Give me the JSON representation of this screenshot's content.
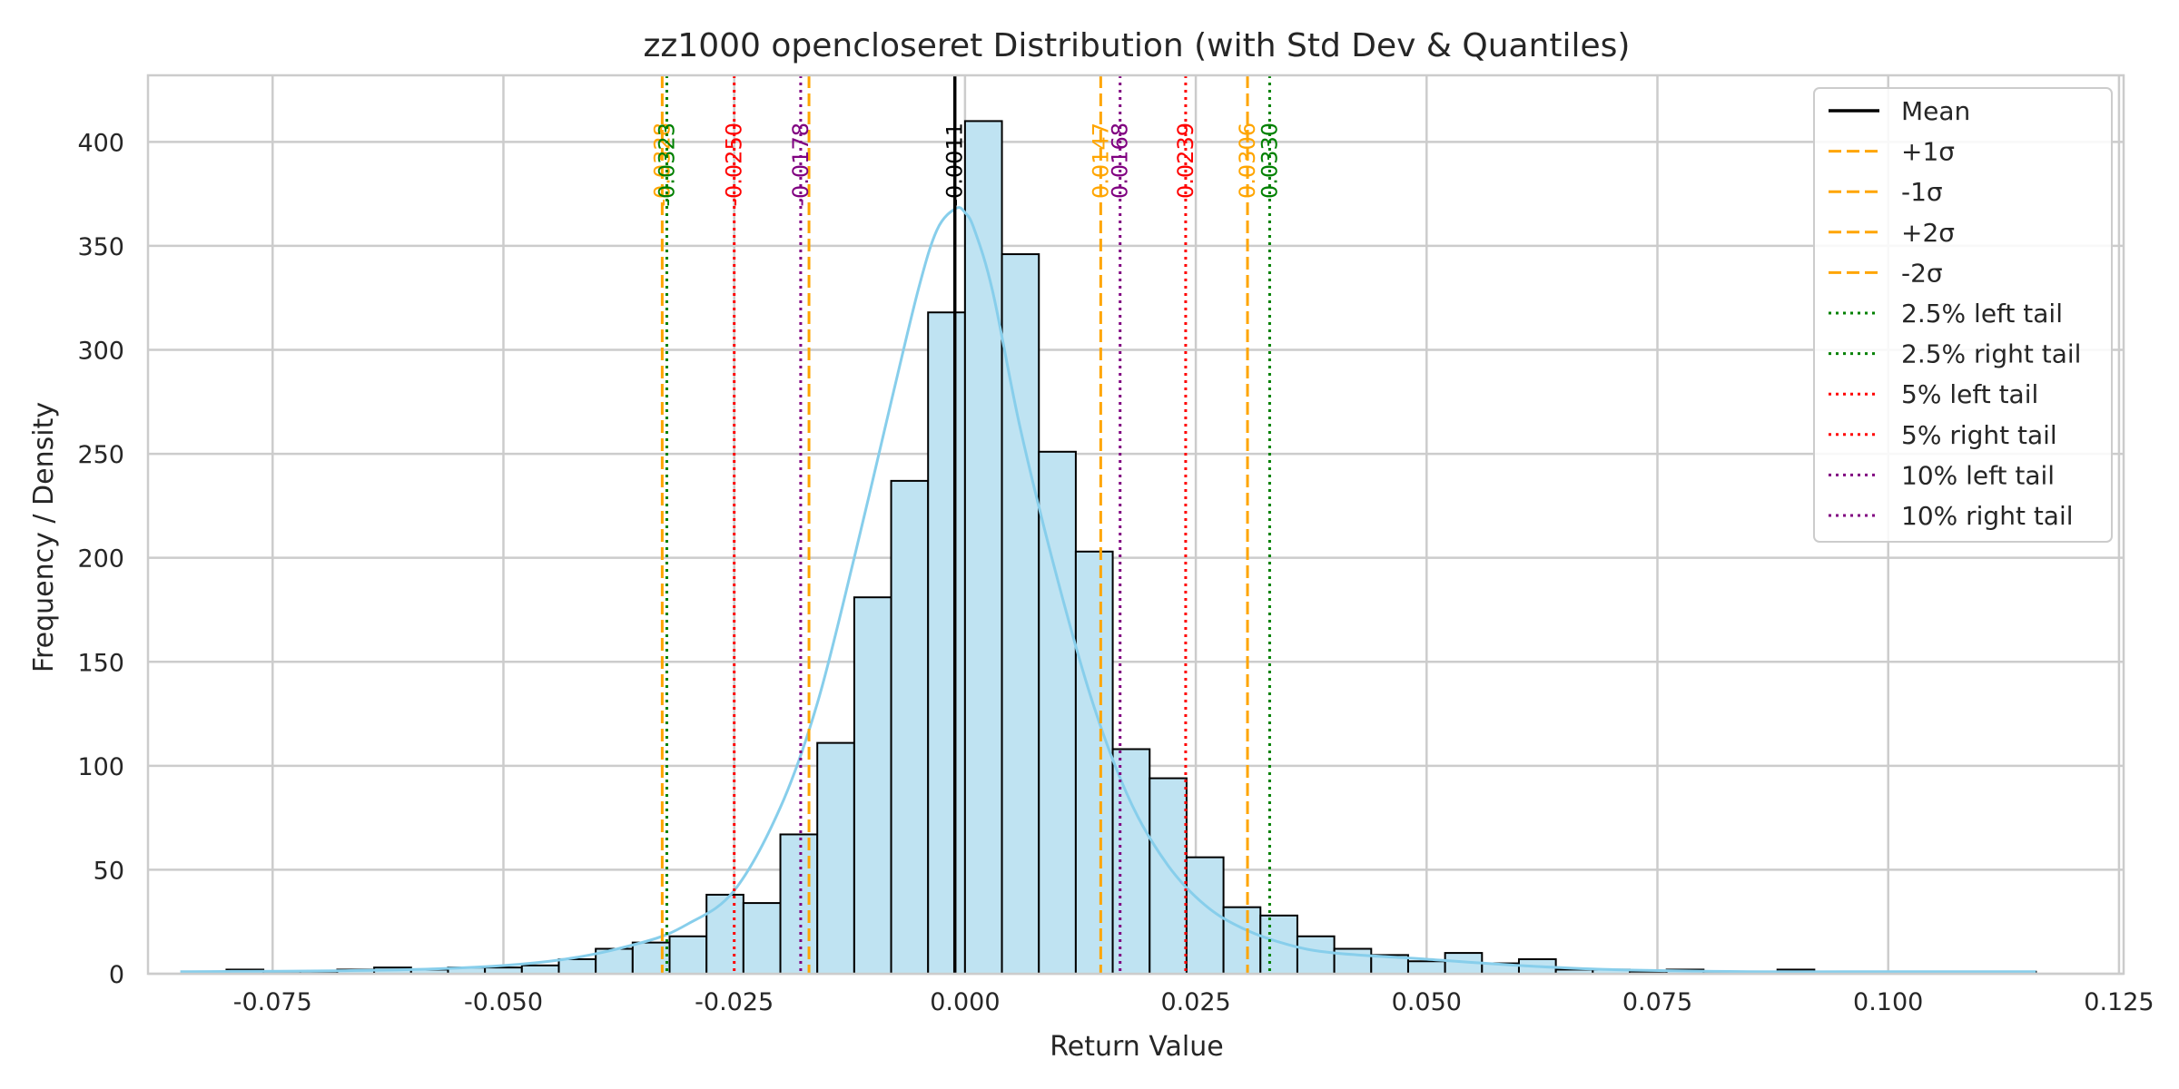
{
  "chart_data": {
    "type": "histogram",
    "title": "zz1000 opencloseret Distribution (with Std Dev & Quantiles)",
    "xlabel": "Return Value",
    "ylabel": "Frequency / Density",
    "xlim": [
      -0.0885,
      0.1255
    ],
    "ylim": [
      0,
      432
    ],
    "x_ticks": [
      -0.075,
      -0.05,
      -0.025,
      0.0,
      0.025,
      0.05,
      0.075,
      0.1,
      0.125
    ],
    "x_tick_labels": [
      "-0.075",
      "-0.050",
      "-0.025",
      "0.000",
      "0.025",
      "0.050",
      "0.075",
      "0.100",
      "0.125"
    ],
    "y_ticks": [
      0,
      50,
      100,
      150,
      200,
      250,
      300,
      350,
      400
    ],
    "y_tick_labels": [
      "0",
      "50",
      "100",
      "150",
      "200",
      "250",
      "300",
      "350",
      "400"
    ],
    "bin_width": 0.004,
    "bins": [
      {
        "left": -0.084,
        "count": 1
      },
      {
        "left": -0.08,
        "count": 2
      },
      {
        "left": -0.076,
        "count": 1
      },
      {
        "left": -0.072,
        "count": 1
      },
      {
        "left": -0.068,
        "count": 2
      },
      {
        "left": -0.064,
        "count": 3
      },
      {
        "left": -0.06,
        "count": 2
      },
      {
        "left": -0.056,
        "count": 3
      },
      {
        "left": -0.052,
        "count": 3
      },
      {
        "left": -0.048,
        "count": 4
      },
      {
        "left": -0.044,
        "count": 7
      },
      {
        "left": -0.04,
        "count": 12
      },
      {
        "left": -0.036,
        "count": 15
      },
      {
        "left": -0.032,
        "count": 18
      },
      {
        "left": -0.028,
        "count": 38
      },
      {
        "left": -0.024,
        "count": 34
      },
      {
        "left": -0.02,
        "count": 67
      },
      {
        "left": -0.016,
        "count": 111
      },
      {
        "left": -0.012,
        "count": 181
      },
      {
        "left": -0.008,
        "count": 237
      },
      {
        "left": -0.004,
        "count": 318
      },
      {
        "left": 0.0,
        "count": 410
      },
      {
        "left": 0.004,
        "count": 346
      },
      {
        "left": 0.008,
        "count": 251
      },
      {
        "left": 0.012,
        "count": 203
      },
      {
        "left": 0.016,
        "count": 108
      },
      {
        "left": 0.02,
        "count": 94
      },
      {
        "left": 0.024,
        "count": 56
      },
      {
        "left": 0.028,
        "count": 32
      },
      {
        "left": 0.032,
        "count": 28
      },
      {
        "left": 0.036,
        "count": 18
      },
      {
        "left": 0.04,
        "count": 12
      },
      {
        "left": 0.044,
        "count": 9
      },
      {
        "left": 0.048,
        "count": 6
      },
      {
        "left": 0.052,
        "count": 10
      },
      {
        "left": 0.056,
        "count": 5
      },
      {
        "left": 0.06,
        "count": 7
      },
      {
        "left": 0.064,
        "count": 2
      },
      {
        "left": 0.068,
        "count": 2
      },
      {
        "left": 0.072,
        "count": 1
      },
      {
        "left": 0.076,
        "count": 2
      },
      {
        "left": 0.08,
        "count": 1
      },
      {
        "left": 0.084,
        "count": 1
      },
      {
        "left": 0.088,
        "count": 2
      },
      {
        "left": 0.092,
        "count": 1
      },
      {
        "left": 0.096,
        "count": 1
      },
      {
        "left": 0.1,
        "count": 1
      },
      {
        "left": 0.104,
        "count": 1
      },
      {
        "left": 0.108,
        "count": 1
      },
      {
        "left": 0.112,
        "count": 1
      }
    ],
    "kde": {
      "x": [
        -0.085,
        -0.06,
        -0.045,
        -0.035,
        -0.03,
        -0.025,
        -0.02,
        -0.016,
        -0.012,
        -0.008,
        -0.005,
        -0.003,
        -0.001,
        0.0,
        0.001,
        0.003,
        0.006,
        0.01,
        0.014,
        0.018,
        0.022,
        0.026,
        0.03,
        0.035,
        0.04,
        0.05,
        0.06,
        0.07,
        0.085,
        0.1,
        0.116
      ],
      "y": [
        1,
        2,
        6,
        15,
        24,
        40,
        80,
        130,
        200,
        275,
        330,
        358,
        368,
        366,
        358,
        328,
        262,
        190,
        128,
        82,
        52,
        33,
        22,
        14,
        10,
        7,
        4,
        2,
        1,
        1,
        1
      ]
    },
    "bar_color": "#bfe3f2",
    "bar_edge_color": "#000000",
    "kde_color": "#87ceeb",
    "vertical_lines": [
      {
        "name": "mean",
        "x": -0.0011,
        "label": "-0.0011",
        "color": "#000000",
        "style": "solid"
      },
      {
        "name": "plus-1-sigma",
        "x": 0.0147,
        "label": "0.0147",
        "color": "#ffa500",
        "style": "dashed"
      },
      {
        "name": "minus-1-sigma",
        "x": -0.0169,
        "label": "",
        "color": "#ffa500",
        "style": "dashed"
      },
      {
        "name": "plus-2-sigma",
        "x": 0.0306,
        "label": "0.0306",
        "color": "#ffa500",
        "style": "dashed"
      },
      {
        "name": "minus-2-sigma",
        "x": -0.0328,
        "label": "-0.0328",
        "color": "#ffa500",
        "style": "dashed"
      },
      {
        "name": "left-2-5-tail",
        "x": -0.0323,
        "label": "-0.0323",
        "color": "#008000",
        "style": "dotted"
      },
      {
        "name": "right-2-5-tail",
        "x": 0.033,
        "label": "0.0330",
        "color": "#008000",
        "style": "dotted"
      },
      {
        "name": "left-5-tail",
        "x": -0.025,
        "label": "-0.0250",
        "color": "#ff0000",
        "style": "dotted"
      },
      {
        "name": "right-5-tail",
        "x": 0.0239,
        "label": "0.0239",
        "color": "#ff0000",
        "style": "dotted"
      },
      {
        "name": "left-10-tail",
        "x": -0.0178,
        "label": "-0.0178",
        "color": "#800080",
        "style": "dotted"
      },
      {
        "name": "right-10-tail",
        "x": 0.0168,
        "label": "0.0168",
        "color": "#800080",
        "style": "dotted"
      }
    ],
    "legend": {
      "position": "top-right",
      "entries": [
        {
          "label": "Mean",
          "color": "#000000",
          "style": "solid"
        },
        {
          "label": "+1σ",
          "color": "#ffa500",
          "style": "dashed"
        },
        {
          "label": "-1σ",
          "color": "#ffa500",
          "style": "dashed"
        },
        {
          "label": "+2σ",
          "color": "#ffa500",
          "style": "dashed"
        },
        {
          "label": "-2σ",
          "color": "#ffa500",
          "style": "dashed"
        },
        {
          "label": "2.5% left tail",
          "color": "#008000",
          "style": "dotted"
        },
        {
          "label": "2.5% right tail",
          "color": "#008000",
          "style": "dotted"
        },
        {
          "label": "5% left tail",
          "color": "#ff0000",
          "style": "dotted"
        },
        {
          "label": "5% right tail",
          "color": "#ff0000",
          "style": "dotted"
        },
        {
          "label": "10% left tail",
          "color": "#800080",
          "style": "dotted"
        },
        {
          "label": "10% right tail",
          "color": "#800080",
          "style": "dotted"
        }
      ]
    },
    "grid": true
  }
}
